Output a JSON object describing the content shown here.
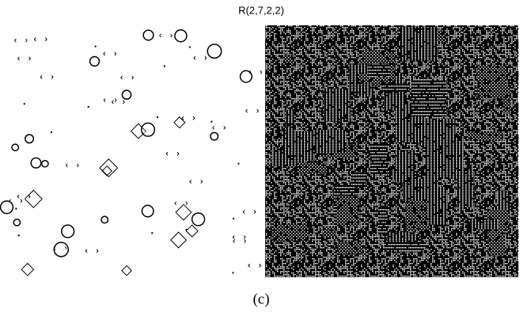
{
  "figure": {
    "title": "R(2,7,2,2)",
    "caption": "(c)"
  }
}
